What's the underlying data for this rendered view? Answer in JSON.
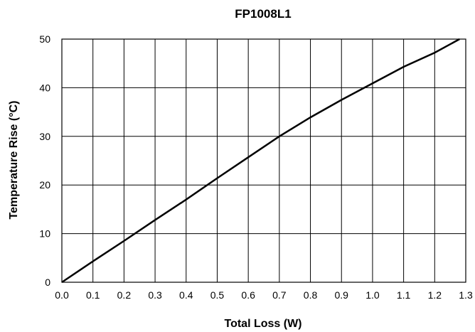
{
  "chart_data": {
    "type": "line",
    "title": "FP1008L1",
    "xlabel": "Total Loss (W)",
    "ylabel": "Temperature Rise (°C)",
    "xlim": [
      0,
      1.3
    ],
    "ylim": [
      0,
      50
    ],
    "x_ticks": [
      "0.0",
      "0.1",
      "0.2",
      "0.3",
      "0.4",
      "0.5",
      "0.6",
      "0.7",
      "0.8",
      "0.9",
      "1.0",
      "1.1",
      "1.2",
      "1.3"
    ],
    "y_ticks": [
      "0",
      "10",
      "20",
      "30",
      "40",
      "50"
    ],
    "grid": true,
    "series": [
      {
        "x": [
          0.0,
          0.1,
          0.2,
          0.3,
          0.4,
          0.5,
          0.6,
          0.7,
          0.8,
          0.9,
          1.0,
          1.1,
          1.2,
          1.28
        ],
        "y": [
          0,
          4.3,
          8.5,
          12.8,
          17.0,
          21.4,
          25.7,
          30.0,
          33.9,
          37.5,
          40.9,
          44.3,
          47.2,
          50
        ]
      }
    ]
  }
}
